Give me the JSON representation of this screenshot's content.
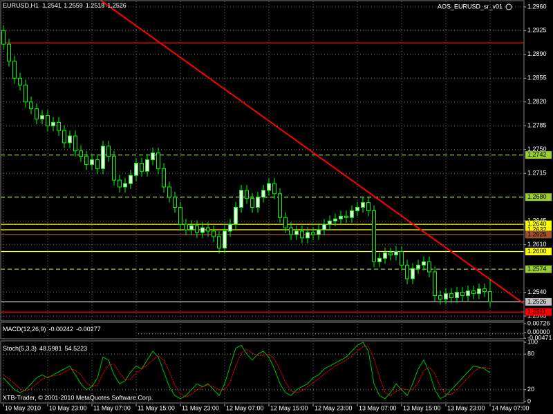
{
  "footer": "XTB-Trader, © 2001-2010 MetaQuotes Software Corp.",
  "chart_data": [
    {
      "type": "candlestick",
      "title": "EURUSD,H1",
      "indicator": "AOS_EURUSD_sr_v01",
      "categories": [
        "10 May 2010",
        null,
        null,
        null,
        null,
        null,
        null,
        null,
        "10 May 23:00",
        null,
        null,
        null,
        null,
        null,
        null,
        null,
        "11 May 07:00",
        null,
        null,
        null,
        null,
        null,
        null,
        null,
        "11 May 15:00",
        null,
        null,
        null,
        null,
        null,
        null,
        null,
        "11 May 23:00",
        null,
        null,
        null,
        null,
        null,
        null,
        null,
        "12 May 07:00",
        null,
        null,
        null,
        null,
        null,
        null,
        null,
        "12 May 15:00",
        null,
        null,
        null,
        null,
        null,
        null,
        null,
        "12 May 23:00",
        null,
        null,
        null,
        null,
        null,
        null,
        null,
        "13 May 07:00",
        null,
        null,
        null,
        null,
        null,
        null,
        null,
        "13 May 15:00",
        null,
        null,
        null,
        null,
        null,
        null,
        null,
        "13 May 23:00",
        null,
        null,
        null,
        null,
        null,
        null,
        null,
        "14 May 07:00"
      ],
      "open": [
        1.2925,
        1.2905,
        1.288,
        1.2855,
        1.2845,
        1.282,
        1.281,
        1.2795,
        1.28,
        1.2785,
        1.279,
        1.2778,
        1.276,
        1.277,
        1.2748,
        1.274,
        1.2728,
        1.2735,
        1.2722,
        1.2755,
        1.274,
        1.2705,
        1.2695,
        1.27,
        1.2712,
        1.273,
        1.2718,
        1.2735,
        1.2745,
        1.2722,
        1.2695,
        1.268,
        1.2665,
        1.264,
        1.2632,
        1.2638,
        1.2628,
        1.2635,
        1.263,
        1.2622,
        1.2605,
        1.263,
        1.264,
        1.2665,
        1.269,
        1.2678,
        1.2665,
        1.268,
        1.269,
        1.27,
        1.2685,
        1.265,
        1.2635,
        1.2625,
        1.263,
        1.262,
        1.2628,
        1.2625,
        1.2632,
        1.264,
        1.2645,
        1.2648,
        1.2652,
        1.265,
        1.266,
        1.2665,
        1.2672,
        1.266,
        1.2585,
        1.259,
        1.2598,
        1.2595,
        1.26,
        1.258,
        1.256,
        1.2575,
        1.258,
        1.2585,
        1.257,
        1.2535,
        1.253,
        1.2538,
        1.2532,
        1.254,
        1.2535,
        1.2542,
        1.2538,
        1.2545,
        1.2541
      ],
      "high": [
        1.2933,
        1.2913,
        1.2888,
        1.2863,
        1.2853,
        1.2828,
        1.2818,
        1.2808,
        1.2808,
        1.2798,
        1.2798,
        1.2786,
        1.2778,
        1.2778,
        1.2756,
        1.2748,
        1.2743,
        1.2743,
        1.2763,
        1.2763,
        1.2748,
        1.2713,
        1.2708,
        1.272,
        1.2738,
        1.2738,
        1.2743,
        1.2753,
        1.2753,
        1.273,
        1.2703,
        1.2688,
        1.2673,
        1.2648,
        1.2646,
        1.2646,
        1.2643,
        1.2643,
        1.2638,
        1.263,
        1.2638,
        1.2648,
        1.2673,
        1.2698,
        1.2698,
        1.2686,
        1.2688,
        1.2698,
        1.2708,
        1.2708,
        1.2693,
        1.2658,
        1.2643,
        1.2638,
        1.2638,
        1.2636,
        1.2636,
        1.264,
        1.2648,
        1.2653,
        1.2656,
        1.266,
        1.266,
        1.2668,
        1.2673,
        1.268,
        1.268,
        1.2668,
        1.2598,
        1.2606,
        1.2606,
        1.2608,
        1.2608,
        1.2588,
        1.2583,
        1.2588,
        1.2593,
        1.2593,
        1.2578,
        1.2543,
        1.2546,
        1.2546,
        1.2548,
        1.2548,
        1.255,
        1.255,
        1.2553,
        1.2553,
        1.2559
      ],
      "low": [
        1.2897,
        1.2872,
        1.2847,
        1.2837,
        1.2812,
        1.2802,
        1.2787,
        1.2787,
        1.2777,
        1.2777,
        1.277,
        1.2752,
        1.2752,
        1.274,
        1.2732,
        1.272,
        1.272,
        1.2714,
        1.2714,
        1.2732,
        1.2697,
        1.2687,
        1.2687,
        1.2692,
        1.2704,
        1.271,
        1.271,
        1.2727,
        1.2714,
        1.2687,
        1.2672,
        1.2657,
        1.2632,
        1.2624,
        1.2624,
        1.262,
        1.262,
        1.2622,
        1.2614,
        1.2597,
        1.2597,
        1.2622,
        1.2632,
        1.2657,
        1.267,
        1.2657,
        1.2657,
        1.2672,
        1.2682,
        1.2677,
        1.2642,
        1.2627,
        1.2617,
        1.2617,
        1.2612,
        1.2612,
        1.2617,
        1.2617,
        1.2624,
        1.2632,
        1.2637,
        1.264,
        1.2642,
        1.2642,
        1.2652,
        1.2657,
        1.2652,
        1.2577,
        1.2577,
        1.2582,
        1.2587,
        1.2587,
        1.2572,
        1.2552,
        1.2552,
        1.2567,
        1.2572,
        1.2562,
        1.2527,
        1.2522,
        1.2522,
        1.2524,
        1.2524,
        1.2527,
        1.2527,
        1.253,
        1.253,
        1.2533,
        1.2518
      ],
      "close": [
        1.2905,
        1.288,
        1.2855,
        1.2845,
        1.282,
        1.281,
        1.2795,
        1.28,
        1.2785,
        1.279,
        1.2778,
        1.276,
        1.277,
        1.2748,
        1.274,
        1.2728,
        1.2735,
        1.2722,
        1.2755,
        1.274,
        1.2705,
        1.2695,
        1.27,
        1.2712,
        1.273,
        1.2718,
        1.2735,
        1.2745,
        1.2722,
        1.2695,
        1.268,
        1.2665,
        1.264,
        1.2632,
        1.2638,
        1.2628,
        1.2635,
        1.263,
        1.2622,
        1.2605,
        1.263,
        1.264,
        1.2665,
        1.269,
        1.2678,
        1.2665,
        1.268,
        1.269,
        1.27,
        1.2685,
        1.265,
        1.2635,
        1.2625,
        1.263,
        1.262,
        1.2628,
        1.2625,
        1.2632,
        1.264,
        1.2645,
        1.2648,
        1.2652,
        1.265,
        1.266,
        1.2665,
        1.2672,
        1.266,
        1.2585,
        1.259,
        1.2598,
        1.2595,
        1.26,
        1.258,
        1.256,
        1.2575,
        1.258,
        1.2585,
        1.257,
        1.2535,
        1.253,
        1.2538,
        1.2532,
        1.254,
        1.2535,
        1.2542,
        1.2538,
        1.2545,
        1.2541,
        1.2526
      ],
      "ylim": [
        1.2498,
        1.2968
      ],
      "yticks": [
        {
          "value": 1.296,
          "label": "1.2960"
        },
        1.2925,
        {
          "value": 1.289,
          "label": "1.2890"
        },
        1.2855,
        {
          "value": 1.282,
          "label": "1.2820"
        },
        1.2785,
        {
          "value": 1.275,
          "label": "1.2750"
        },
        1.2715,
        1.2645,
        {
          "value": 1.261,
          "label": "1.2610"
        },
        {
          "value": 1.254,
          "label": "1.2540"
        },
        1.2505
      ],
      "grid": true,
      "wick_color": "#00ff00",
      "bull_color": "#ffffff",
      "bear_color": "#000000",
      "levels": [
        {
          "value": 1.2907,
          "color": "#ff0000",
          "style": "solid",
          "boxed": false
        },
        {
          "value": 1.2742,
          "color": "#9acd32",
          "style": "dashed"
        },
        {
          "value": 1.268,
          "label": "1.2680",
          "color": "#9acd32",
          "style": "dashed"
        },
        {
          "value": 1.264,
          "label": "1.2640",
          "color": "#ffff00",
          "style": "solid"
        },
        {
          "value": 1.2632,
          "color": "#ffff00",
          "style": "solid"
        },
        {
          "value": 1.2625,
          "color": "#a0522d",
          "style": "solid"
        },
        {
          "value": 1.26,
          "label": "1.2600",
          "color": "#ffff00",
          "style": "solid"
        },
        {
          "value": 1.2574,
          "color": "#9acd32",
          "style": "dashed"
        },
        {
          "value": 1.2526,
          "color": "#c0c0c0",
          "style": "solid"
        },
        {
          "value": 1.2511,
          "color": "#ff0000",
          "style": "solid"
        }
      ],
      "trendline": {
        "x": [
          17.5,
          94
        ],
        "values": [
          1.297,
          1.2524
        ],
        "color": "#ff0000"
      }
    },
    {
      "type": "macd",
      "title": "MACD(12,26,9)",
      "main": -0.00242,
      "signal": -0.00277,
      "ylim": [
        -0.0052,
        0.0078
      ],
      "yticks": [
        0.00726,
        {
          "value": 0,
          "label": "0.00000"
        },
        -0.00471
      ]
    },
    {
      "type": "line",
      "title": "Stoch(5,3,3)",
      "ylim": [
        0,
        100
      ],
      "yticks": [
        100,
        80,
        20,
        0
      ],
      "levels": [
        80,
        20
      ],
      "series": [
        {
          "color": "#00c000",
          "style": "solid",
          "values": [
            40,
            30,
            20,
            15,
            20,
            30,
            40,
            45,
            40,
            45,
            50,
            55,
            60,
            45,
            30,
            20,
            25,
            40,
            75,
            70,
            45,
            30,
            35,
            50,
            60,
            55,
            70,
            85,
            75,
            50,
            25,
            10,
            5,
            10,
            20,
            30,
            25,
            30,
            20,
            10,
            30,
            60,
            90,
            95,
            80,
            70,
            80,
            85,
            75,
            55,
            30,
            15,
            10,
            20,
            25,
            30,
            40,
            45,
            55,
            60,
            65,
            70,
            75,
            85,
            95,
            100,
            85,
            30,
            10,
            5,
            15,
            30,
            20,
            10,
            30,
            55,
            70,
            50,
            20,
            5,
            10,
            20,
            30,
            40,
            50,
            60,
            58,
            55,
            48.5981
          ]
        },
        {
          "color": "#ff0000",
          "style": "dotted",
          "values": [
            45,
            38,
            30,
            22,
            18,
            22,
            30,
            38,
            42,
            43,
            45,
            50,
            55,
            53,
            45,
            32,
            25,
            28,
            47,
            62,
            63,
            48,
            37,
            38,
            48,
            55,
            62,
            70,
            77,
            70,
            50,
            28,
            13,
            8,
            12,
            20,
            25,
            28,
            25,
            20,
            20,
            33,
            60,
            82,
            88,
            82,
            77,
            78,
            80,
            72,
            53,
            33,
            18,
            15,
            18,
            25,
            32,
            38,
            47,
            53,
            60,
            65,
            70,
            77,
            85,
            93,
            93,
            72,
            42,
            15,
            10,
            17,
            22,
            20,
            20,
            32,
            52,
            58,
            47,
            25,
            12,
            12,
            20,
            30,
            40,
            50,
            56,
            58,
            54.5223
          ]
        }
      ]
    }
  ]
}
